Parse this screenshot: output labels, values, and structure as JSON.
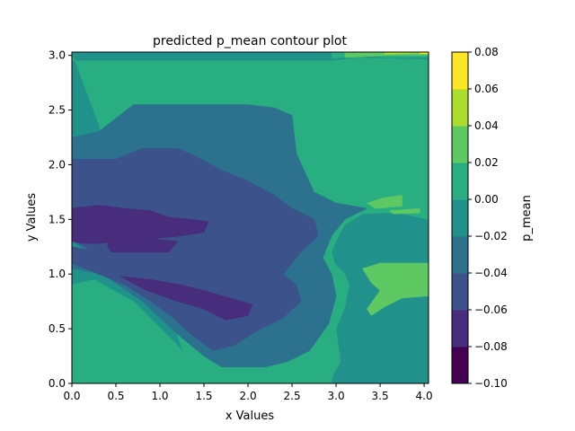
{
  "chart_data": {
    "type": "heatmap",
    "subtype": "filled-contour",
    "title": "predicted p_mean contour plot",
    "xlabel": "x Values",
    "ylabel": "y Values",
    "xlim": [
      0.0,
      4.05
    ],
    "ylim": [
      0.0,
      3.03
    ],
    "x_ticks": [
      0.0,
      0.5,
      1.0,
      1.5,
      2.0,
      2.5,
      3.0,
      3.5,
      4.0
    ],
    "x_tick_labels": [
      "0.0",
      "0.5",
      "1.0",
      "1.5",
      "2.0",
      "2.5",
      "3.0",
      "3.5",
      "4.0"
    ],
    "y_ticks": [
      0.0,
      0.5,
      1.0,
      1.5,
      2.0,
      2.5,
      3.0
    ],
    "y_tick_labels": [
      "0.0",
      "0.5",
      "1.0",
      "1.5",
      "2.0",
      "2.5",
      "3.0"
    ],
    "grid": false,
    "colorbar": {
      "label": "p_mean",
      "levels": [
        -0.1,
        -0.08,
        -0.06,
        -0.04,
        -0.02,
        0.0,
        0.02,
        0.04,
        0.06,
        0.08
      ],
      "tick_labels": [
        "−0.10",
        "−0.08",
        "−0.06",
        "−0.04",
        "−0.02",
        "0.00",
        "0.02",
        "0.04",
        "0.06",
        "0.08"
      ],
      "colors": [
        "#440154",
        "#472d7b",
        "#3b528b",
        "#2c728e",
        "#21918c",
        "#28ae80",
        "#5ec962",
        "#addc30",
        "#fde725"
      ],
      "colormap": "viridis"
    },
    "regions": [
      {
        "level": [
          -0.02,
          0.0
        ],
        "points": [
          [
            0.0,
            3.03
          ],
          [
            4.05,
            3.03
          ],
          [
            4.05,
            0.0
          ],
          [
            0.0,
            0.0
          ]
        ]
      },
      {
        "level": [
          0.0,
          0.02
        ],
        "points": [
          [
            0.0,
            3.03
          ],
          [
            0.0,
            2.95
          ],
          [
            2.9,
            2.95
          ],
          [
            2.95,
            2.95
          ],
          [
            3.25,
            2.98
          ],
          [
            4.05,
            2.96
          ],
          [
            4.05,
            1.5
          ],
          [
            3.75,
            1.55
          ],
          [
            3.55,
            1.56
          ],
          [
            3.3,
            1.55
          ],
          [
            3.1,
            1.45
          ],
          [
            3.0,
            1.3
          ],
          [
            2.95,
            1.2
          ],
          [
            2.98,
            1.1
          ],
          [
            3.1,
            1.0
          ],
          [
            3.15,
            0.9
          ],
          [
            3.1,
            0.7
          ],
          [
            3.0,
            0.5
          ],
          [
            3.05,
            0.2
          ],
          [
            2.95,
            0.05
          ],
          [
            2.95,
            0.0
          ],
          [
            0.0,
            0.0
          ],
          [
            0.0,
            0.9
          ],
          [
            0.25,
            0.95
          ],
          [
            0.7,
            0.75
          ],
          [
            1.2,
            0.35
          ],
          [
            1.45,
            0.1
          ],
          [
            1.4,
            0.0
          ]
        ]
      },
      {
        "level": [
          0.0,
          0.02
        ],
        "points": [
          [
            2.95,
            3.03
          ],
          [
            2.95,
            2.97
          ],
          [
            3.3,
            3.0
          ],
          [
            3.6,
            2.98
          ],
          [
            4.05,
            2.98
          ],
          [
            4.05,
            3.03
          ]
        ]
      },
      {
        "level": [
          0.02,
          0.04
        ],
        "points": [
          [
            3.35,
            1.65
          ],
          [
            3.55,
            1.7
          ],
          [
            3.75,
            1.72
          ],
          [
            3.75,
            1.62
          ],
          [
            3.45,
            1.6
          ]
        ]
      },
      {
        "level": [
          0.02,
          0.04
        ],
        "points": [
          [
            3.6,
            1.58
          ],
          [
            3.95,
            1.6
          ],
          [
            3.95,
            1.56
          ],
          [
            3.65,
            1.55
          ]
        ]
      },
      {
        "level": [
          0.02,
          0.04
        ],
        "points": [
          [
            3.3,
            1.05
          ],
          [
            3.5,
            1.1
          ],
          [
            4.05,
            1.1
          ],
          [
            4.05,
            0.8
          ],
          [
            3.75,
            0.78
          ],
          [
            3.55,
            0.7
          ],
          [
            3.4,
            0.62
          ],
          [
            3.35,
            0.68
          ],
          [
            3.5,
            0.85
          ],
          [
            3.4,
            0.92
          ]
        ]
      },
      {
        "level": [
          0.02,
          0.04
        ],
        "points": [
          [
            3.1,
            2.98
          ],
          [
            3.6,
            3.0
          ],
          [
            3.8,
            3.0
          ],
          [
            3.95,
            3.0
          ],
          [
            4.05,
            3.0
          ],
          [
            4.05,
            3.03
          ],
          [
            3.1,
            3.03
          ]
        ]
      },
      {
        "level": [
          0.04,
          0.06
        ],
        "points": [
          [
            3.55,
            3.01
          ],
          [
            3.9,
            3.02
          ],
          [
            4.05,
            3.02
          ],
          [
            4.05,
            3.03
          ],
          [
            3.55,
            3.03
          ]
        ]
      },
      {
        "level": [
          0.06,
          0.08
        ],
        "points": [
          [
            3.95,
            3.015
          ],
          [
            4.05,
            3.015
          ],
          [
            4.05,
            3.03
          ],
          [
            3.95,
            3.03
          ]
        ]
      },
      {
        "level": [
          -0.04,
          -0.02
        ],
        "points": [
          [
            0.0,
            2.25
          ],
          [
            0.3,
            2.3
          ],
          [
            0.7,
            2.55
          ],
          [
            1.0,
            2.55
          ],
          [
            1.5,
            2.55
          ],
          [
            2.0,
            2.55
          ],
          [
            2.3,
            2.52
          ],
          [
            2.5,
            2.45
          ],
          [
            2.55,
            2.1
          ],
          [
            2.75,
            1.75
          ],
          [
            3.0,
            1.65
          ],
          [
            3.35,
            1.6
          ],
          [
            3.1,
            1.5
          ],
          [
            2.95,
            1.35
          ],
          [
            2.85,
            1.15
          ],
          [
            2.95,
            1.0
          ],
          [
            3.0,
            0.8
          ],
          [
            2.92,
            0.55
          ],
          [
            2.7,
            0.3
          ],
          [
            2.45,
            0.2
          ],
          [
            2.2,
            0.15
          ],
          [
            1.95,
            0.15
          ],
          [
            1.7,
            0.15
          ],
          [
            1.5,
            0.25
          ],
          [
            1.2,
            0.45
          ],
          [
            0.8,
            0.75
          ],
          [
            0.35,
            1.0
          ],
          [
            0.0,
            1.05
          ],
          [
            0.0,
            1.12
          ],
          [
            0.3,
            1.12
          ],
          [
            0.1,
            1.25
          ],
          [
            0.0,
            1.3
          ]
        ]
      },
      {
        "level": [
          -0.06,
          -0.04
        ],
        "points": [
          [
            0.0,
            2.05
          ],
          [
            0.5,
            2.05
          ],
          [
            0.8,
            2.15
          ],
          [
            1.2,
            2.15
          ],
          [
            1.4,
            2.08
          ],
          [
            1.7,
            1.95
          ],
          [
            2.0,
            1.85
          ],
          [
            2.3,
            1.72
          ],
          [
            2.5,
            1.6
          ],
          [
            2.75,
            1.5
          ],
          [
            2.8,
            1.35
          ],
          [
            2.6,
            1.2
          ],
          [
            2.4,
            1.0
          ],
          [
            2.55,
            0.9
          ],
          [
            2.6,
            0.75
          ],
          [
            2.4,
            0.6
          ],
          [
            2.1,
            0.48
          ],
          [
            1.85,
            0.35
          ],
          [
            1.6,
            0.3
          ],
          [
            1.35,
            0.45
          ],
          [
            1.15,
            0.6
          ],
          [
            0.9,
            0.75
          ],
          [
            0.6,
            0.9
          ],
          [
            0.3,
            1.0
          ],
          [
            0.0,
            1.1
          ],
          [
            0.0,
            1.25
          ],
          [
            0.2,
            1.22
          ],
          [
            0.05,
            1.3
          ],
          [
            0.0,
            1.3
          ]
        ]
      },
      {
        "level": [
          -0.08,
          -0.06
        ],
        "points": [
          [
            0.0,
            1.6
          ],
          [
            0.3,
            1.63
          ],
          [
            0.6,
            1.6
          ],
          [
            0.9,
            1.58
          ],
          [
            1.1,
            1.52
          ],
          [
            1.35,
            1.5
          ],
          [
            1.55,
            1.48
          ],
          [
            1.5,
            1.38
          ],
          [
            1.25,
            1.35
          ],
          [
            0.9,
            1.32
          ],
          [
            0.55,
            1.3
          ],
          [
            0.3,
            1.28
          ],
          [
            0.1,
            1.28
          ],
          [
            0.0,
            1.3
          ]
        ]
      },
      {
        "level": [
          -0.08,
          -0.06
        ],
        "points": [
          [
            0.45,
            1.32
          ],
          [
            0.9,
            1.32
          ],
          [
            1.2,
            1.3
          ],
          [
            1.1,
            1.2
          ],
          [
            0.75,
            1.2
          ],
          [
            0.45,
            1.2
          ],
          [
            0.4,
            1.26
          ]
        ]
      },
      {
        "level": [
          -0.08,
          -0.06
        ],
        "points": [
          [
            0.55,
            0.98
          ],
          [
            0.9,
            0.95
          ],
          [
            1.25,
            0.9
          ],
          [
            1.5,
            0.85
          ],
          [
            1.8,
            0.78
          ],
          [
            2.05,
            0.72
          ],
          [
            2.0,
            0.62
          ],
          [
            1.75,
            0.58
          ],
          [
            1.5,
            0.68
          ],
          [
            1.2,
            0.75
          ],
          [
            0.85,
            0.85
          ]
        ]
      }
    ]
  }
}
